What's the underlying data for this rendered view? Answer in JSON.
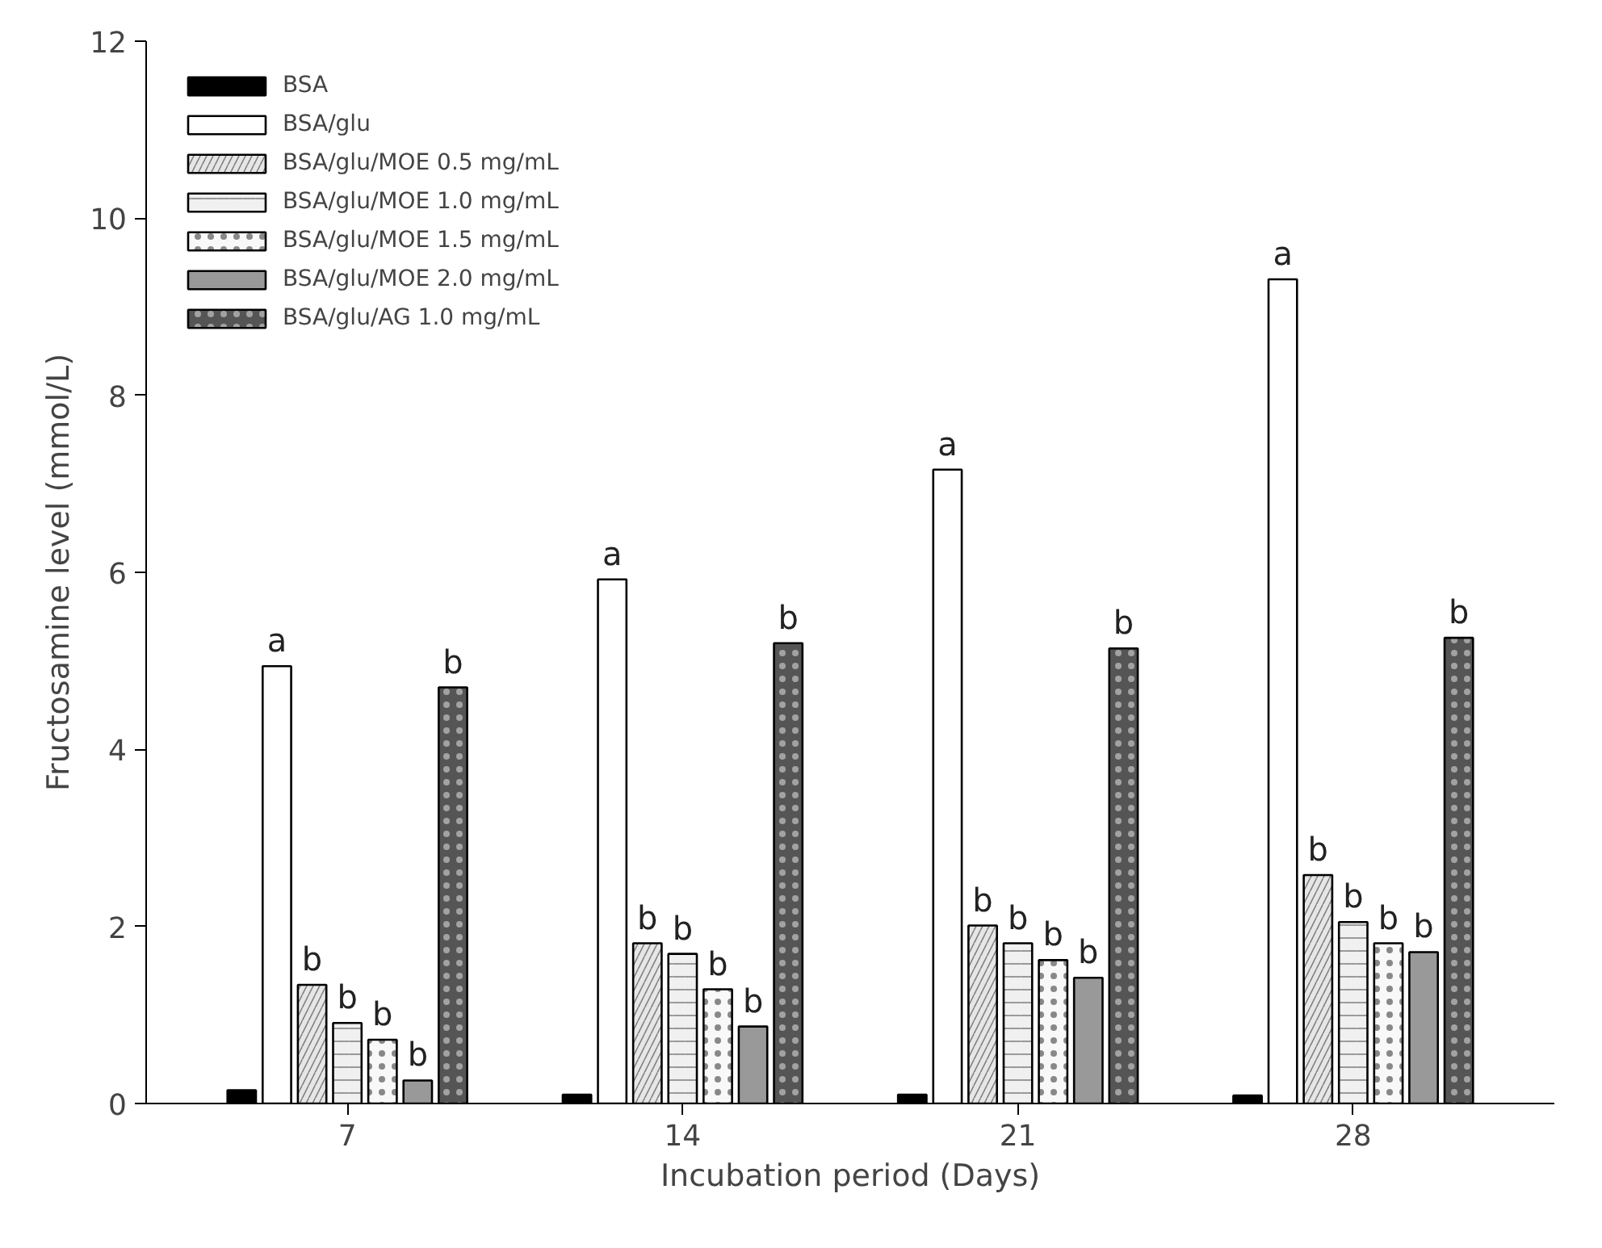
{
  "chart_data": {
    "type": "bar",
    "xlabel": "Incubation period (Days)",
    "ylabel": "Fructosamine level (mmol/L)",
    "categories": [
      "7",
      "14",
      "21",
      "28"
    ],
    "ylim": [
      0,
      12
    ],
    "yticks": [
      0,
      2,
      4,
      6,
      8,
      10,
      12
    ],
    "grid": false,
    "legend": "top left",
    "series": [
      {
        "name": "BSA",
        "color": "#000000",
        "values": [
          0.15,
          0.1,
          0.1,
          0.09
        ]
      },
      {
        "name": "BSA/glu",
        "color": "#ffffff",
        "values": [
          4.94,
          5.92,
          7.16,
          9.31
        ],
        "value_labels": [
          "a",
          "a",
          "a",
          "a"
        ]
      },
      {
        "name": "BSA/glu/MOE 0.5 mg/mL",
        "color": "#e6e6e6",
        "values": [
          1.34,
          1.81,
          2.01,
          2.58
        ],
        "value_labels": [
          "b",
          "b",
          "b",
          "b"
        ]
      },
      {
        "name": "BSA/glu/MOE 1.0 mg/mL",
        "color": "#f0f0f0",
        "values": [
          0.91,
          1.69,
          1.81,
          2.05
        ],
        "value_labels": [
          "b",
          "b",
          "b",
          "b"
        ]
      },
      {
        "name": "BSA/glu/MOE 1.5 mg/mL",
        "color": "#f8f8f8",
        "values": [
          0.72,
          1.29,
          1.62,
          1.81
        ],
        "value_labels": [
          "b",
          "b",
          "b",
          "b"
        ]
      },
      {
        "name": "BSA/glu/MOE 2.0 mg/mL",
        "color": "#999999",
        "values": [
          0.26,
          0.87,
          1.42,
          1.71
        ],
        "value_labels": [
          "b",
          "b",
          "b",
          "b"
        ]
      },
      {
        "name": "BSA/glu/AG 1.0 mg/mL",
        "color": "#555555",
        "values": [
          4.7,
          5.2,
          5.14,
          5.26
        ],
        "value_labels": [
          "b",
          "b",
          "b",
          "b"
        ]
      }
    ]
  }
}
